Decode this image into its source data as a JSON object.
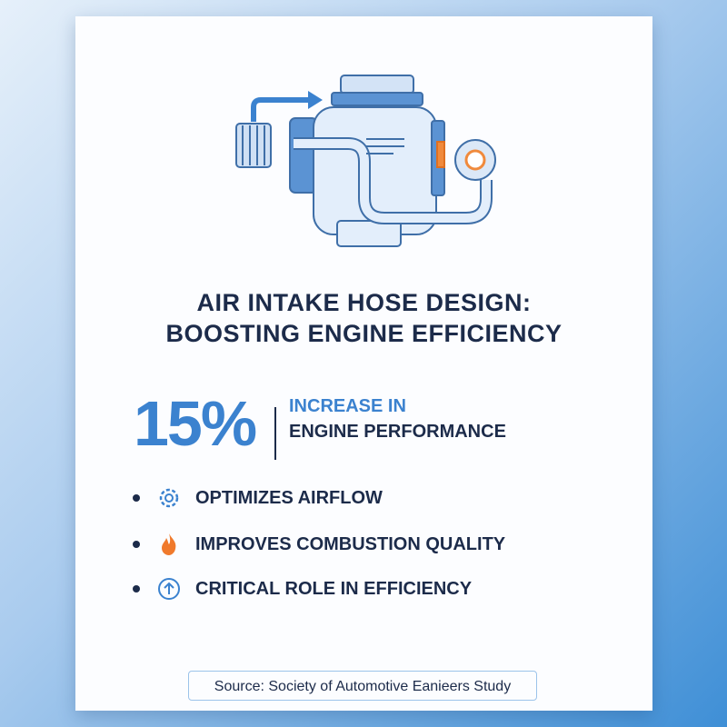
{
  "title": {
    "lines": [
      "AIR INTAKE HOSE DESIGN:",
      "BOOSTING ENGINE EFFICIENCY"
    ]
  },
  "stat": {
    "value": "15%",
    "label_lines": [
      "INCREASE IN",
      "ENGINE PERFORMANCE"
    ]
  },
  "bullets": [
    "OPTIMIZES AIRFLOW",
    "IMPROVES COMBUSTION QUALITY",
    "CRITICAL ROLE IN EFFICIENCY"
  ],
  "source": "Source: Society of Automotive Eanieers Study"
}
